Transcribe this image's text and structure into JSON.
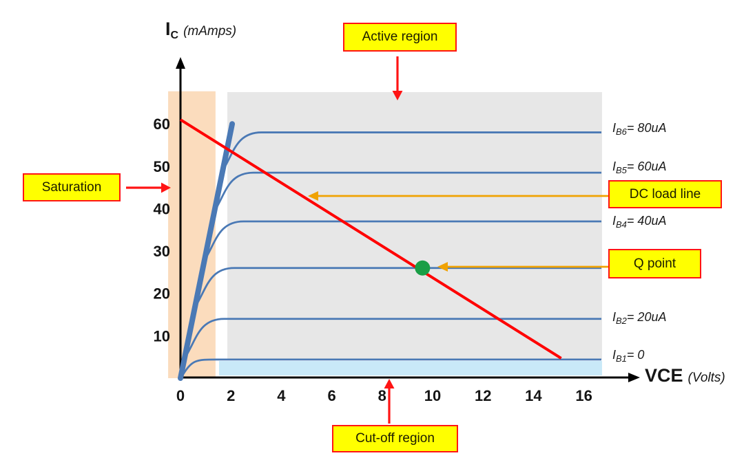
{
  "y_axis_title": {
    "sym": "I",
    "sub": "C",
    "unit": "(mAmps)"
  },
  "x_axis_title": {
    "sym": "VCE",
    "unit": "(Volts)"
  },
  "callouts": {
    "saturation": "Saturation",
    "active": "Active region",
    "dc_load_line": "DC load line",
    "q_point": "Q point",
    "cutoff": "Cut-off region"
  },
  "colors": {
    "curve_blue": "#4a79b5",
    "load_line_red": "#ff0000",
    "callout_yellow": "#ffff00",
    "callout_border_red": "#ff1414",
    "annotation_orange": "#f0a202",
    "q_point_green": "#1a9e46",
    "saturation_band": "#fbdcbd",
    "active_band": "#e7e7e7",
    "cutoff_band": "#c9e9f8",
    "axis_black": "#000000"
  },
  "chart_data": {
    "type": "line",
    "xlabel": "VCE (Volts)",
    "ylabel": "IC (mAmps)",
    "xlim": [
      0,
      17.5
    ],
    "ylim": [
      0,
      72
    ],
    "x_ticks": [
      0,
      2,
      4,
      6,
      8,
      10,
      12,
      14,
      16
    ],
    "y_ticks": [
      10,
      20,
      30,
      40,
      50,
      60
    ],
    "curves": [
      {
        "sym": "I",
        "sub": "B6",
        "eq": "= 80uA",
        "ic": 58
      },
      {
        "sym": "I",
        "sub": "B5",
        "eq": "= 60uA",
        "ic": 48.5
      },
      {
        "sym": "I",
        "sub": "B4",
        "eq": "= 40uA",
        "ic": 37
      },
      {
        "sym": "",
        "sub": "",
        "eq": "",
        "ic": 26
      },
      {
        "sym": "I",
        "sub": "B2",
        "eq": "= 20uA",
        "ic": 14
      },
      {
        "sym": "I",
        "sub": "B1",
        "eq": "= 0",
        "ic": 4.4
      }
    ],
    "saturation_line": {
      "x": [
        0,
        2.05
      ],
      "y": [
        0,
        60
      ]
    },
    "load_line": {
      "x": [
        0,
        15.1
      ],
      "y": [
        61,
        4.7
      ]
    },
    "q_point": {
      "vce": 9.6,
      "ic": 26
    },
    "regions": {
      "saturation": {
        "x": [
          -0.49,
          1.39
        ],
        "y": [
          0,
          67.7
        ]
      },
      "active": {
        "x": [
          1.86,
          16.72
        ],
        "y": [
          4.4,
          67.5
        ]
      },
      "cutoff": {
        "x": [
          1.53,
          16.72
        ],
        "y": [
          0.65,
          4.06
        ]
      }
    }
  }
}
